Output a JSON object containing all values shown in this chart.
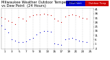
{
  "title": "Milwaukee Weather Outdoor Temperature",
  "subtitle": "vs Dew Point  (24 Hours)",
  "temp_color": "#cc0000",
  "dew_color": "#0000cc",
  "background_color": "#ffffff",
  "grid_color": "#bbbbbb",
  "title_fontsize": 3.8,
  "tick_fontsize": 3.0,
  "ylim": [
    -5,
    42
  ],
  "yticks": [
    -4,
    1,
    6,
    11,
    16,
    21,
    26,
    31,
    36,
    41
  ],
  "ytick_labels": [
    "-4",
    "1",
    "6",
    "11",
    "16",
    "21",
    "26",
    "31",
    "36",
    "41"
  ],
  "temp_data": [
    [
      0,
      32
    ],
    [
      1,
      30
    ],
    [
      2,
      28
    ],
    [
      3,
      26
    ],
    [
      4,
      24
    ],
    [
      5,
      32
    ],
    [
      6,
      30
    ],
    [
      7,
      28
    ],
    [
      8,
      33
    ],
    [
      9,
      34
    ],
    [
      10,
      35
    ],
    [
      11,
      35
    ],
    [
      12,
      36
    ],
    [
      13,
      35
    ],
    [
      14,
      34
    ],
    [
      15,
      30
    ],
    [
      16,
      28
    ],
    [
      17,
      26
    ],
    [
      18,
      33
    ],
    [
      19,
      34
    ],
    [
      20,
      35
    ],
    [
      21,
      34
    ],
    [
      22,
      33
    ],
    [
      23,
      31
    ],
    [
      24,
      30
    ]
  ],
  "dew_data": [
    [
      0,
      22
    ],
    [
      1,
      18
    ],
    [
      2,
      14
    ],
    [
      3,
      6
    ],
    [
      4,
      5
    ],
    [
      5,
      3
    ],
    [
      6,
      3
    ],
    [
      7,
      4
    ],
    [
      8,
      6
    ],
    [
      9,
      8
    ],
    [
      10,
      12
    ],
    [
      11,
      14
    ],
    [
      12,
      16
    ],
    [
      13,
      16
    ],
    [
      14,
      15
    ],
    [
      15,
      2
    ],
    [
      16,
      1
    ],
    [
      17,
      0
    ],
    [
      18,
      6
    ],
    [
      19,
      7
    ],
    [
      20,
      8
    ],
    [
      21,
      6
    ],
    [
      22,
      5
    ],
    [
      23,
      4
    ],
    [
      24,
      3
    ]
  ],
  "xtick_positions": [
    1,
    3,
    5,
    7,
    9,
    11,
    13,
    15,
    17,
    19,
    21,
    23,
    25
  ],
  "xtick_labels": [
    "1",
    "3",
    "5",
    "7",
    "9",
    "11",
    "13",
    "15",
    "17",
    "19",
    "21",
    "23",
    "25"
  ],
  "xlim": [
    0,
    26
  ],
  "legend_dew_label": "Dew Point",
  "legend_temp_label": "Outdoor Temp"
}
